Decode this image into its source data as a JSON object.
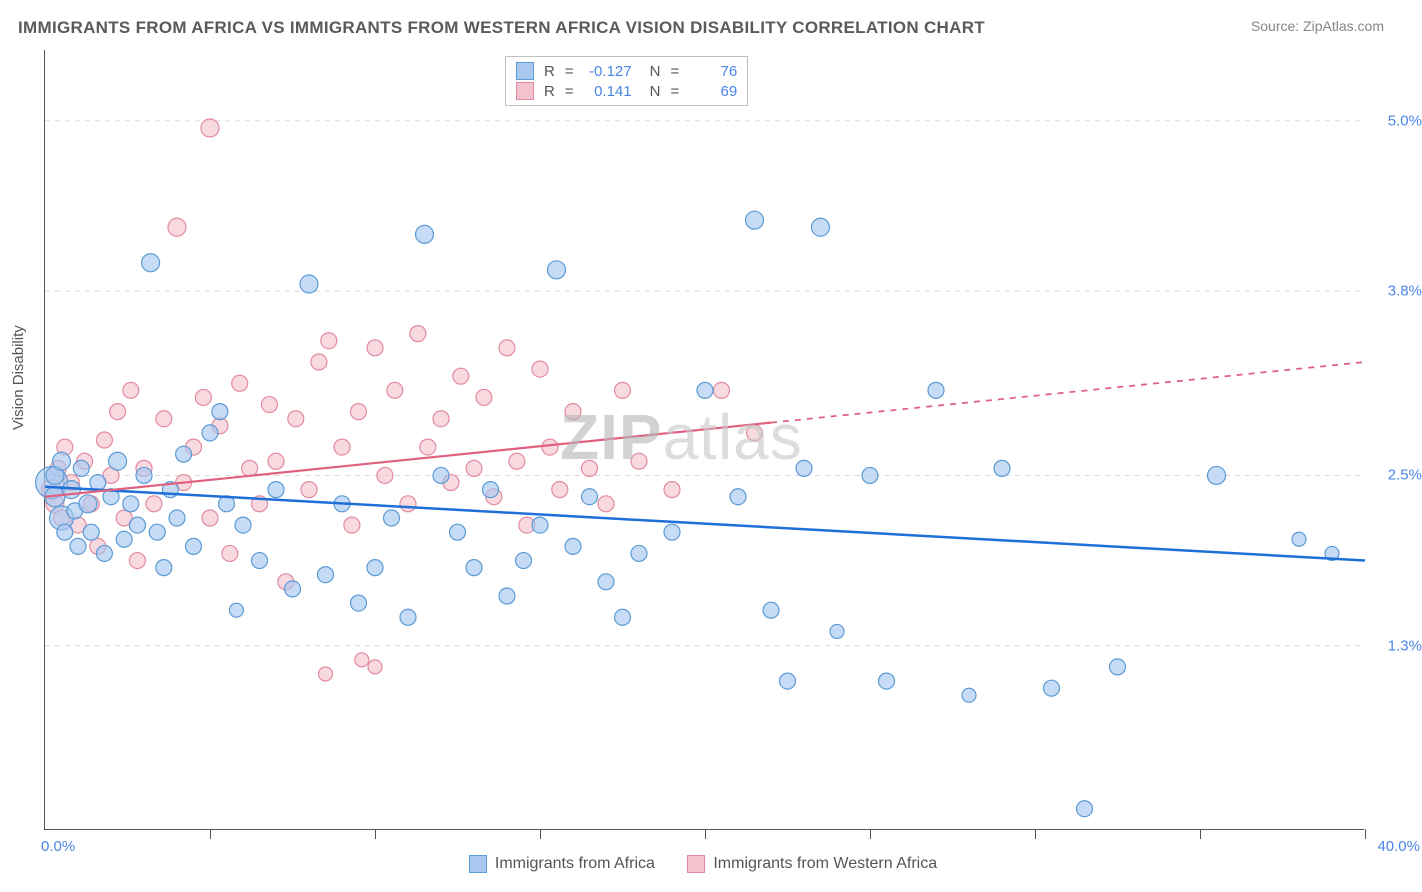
{
  "title": "IMMIGRANTS FROM AFRICA VS IMMIGRANTS FROM WESTERN AFRICA VISION DISABILITY CORRELATION CHART",
  "source": "Source: ZipAtlas.com",
  "watermark": "ZIPatlas",
  "ylabel": "Vision Disability",
  "chart": {
    "type": "scatter",
    "xlim": [
      0,
      40
    ],
    "ylim": [
      0,
      5.5
    ],
    "x_axis_label_min": "0.0%",
    "x_axis_label_max": "40.0%",
    "y_grid": [
      1.3,
      2.5,
      3.8,
      5.0
    ],
    "y_grid_labels": [
      "1.3%",
      "2.5%",
      "3.8%",
      "5.0%"
    ],
    "x_tick_positions": [
      5,
      10,
      15,
      20,
      25,
      30,
      35,
      40
    ],
    "grid_color": "#d7d7d7",
    "background_color": "#ffffff",
    "axis_color": "#555555",
    "tick_label_color": "#4a86e8",
    "series": [
      {
        "name": "Immigrants from Africa",
        "marker_color_fill": "#a8c8f0",
        "marker_color_stroke": "#5b9bd5",
        "marker_opacity": 0.65,
        "line_color": "#1f6fd8",
        "line_width": 2.5,
        "R": "-0.127",
        "N": "76",
        "trend": {
          "y_at_x0": 2.42,
          "y_at_x40": 1.9,
          "solid_until_x": 40
        },
        "points": [
          [
            0.2,
            2.45,
            16
          ],
          [
            0.3,
            2.35,
            10
          ],
          [
            0.3,
            2.5,
            9
          ],
          [
            0.5,
            2.2,
            12
          ],
          [
            0.5,
            2.6,
            9
          ],
          [
            0.6,
            2.1,
            8
          ],
          [
            0.8,
            2.4,
            9
          ],
          [
            0.9,
            2.25,
            8
          ],
          [
            1,
            2.0,
            8
          ],
          [
            1.1,
            2.55,
            8
          ],
          [
            1.3,
            2.3,
            9
          ],
          [
            1.4,
            2.1,
            8
          ],
          [
            1.6,
            2.45,
            8
          ],
          [
            1.8,
            1.95,
            8
          ],
          [
            2,
            2.35,
            8
          ],
          [
            2.2,
            2.6,
            9
          ],
          [
            2.4,
            2.05,
            8
          ],
          [
            2.6,
            2.3,
            8
          ],
          [
            2.8,
            2.15,
            8
          ],
          [
            3,
            2.5,
            8
          ],
          [
            3.2,
            4.0,
            9
          ],
          [
            3.4,
            2.1,
            8
          ],
          [
            3.6,
            1.85,
            8
          ],
          [
            3.8,
            2.4,
            8
          ],
          [
            4,
            2.2,
            8
          ],
          [
            4.2,
            2.65,
            8
          ],
          [
            4.5,
            2.0,
            8
          ],
          [
            5,
            2.8,
            8
          ],
          [
            5.3,
            2.95,
            8
          ],
          [
            5.5,
            2.3,
            8
          ],
          [
            5.8,
            1.55,
            7
          ],
          [
            6,
            2.15,
            8
          ],
          [
            6.5,
            1.9,
            8
          ],
          [
            7,
            2.4,
            8
          ],
          [
            7.5,
            1.7,
            8
          ],
          [
            8,
            3.85,
            9
          ],
          [
            8.5,
            1.8,
            8
          ],
          [
            9,
            2.3,
            8
          ],
          [
            9.5,
            1.6,
            8
          ],
          [
            10,
            1.85,
            8
          ],
          [
            10.5,
            2.2,
            8
          ],
          [
            11,
            1.5,
            8
          ],
          [
            11.5,
            4.2,
            9
          ],
          [
            12,
            2.5,
            8
          ],
          [
            12.5,
            2.1,
            8
          ],
          [
            13,
            1.85,
            8
          ],
          [
            13.5,
            2.4,
            8
          ],
          [
            14,
            1.65,
            8
          ],
          [
            14.5,
            1.9,
            8
          ],
          [
            15,
            2.15,
            8
          ],
          [
            15.5,
            3.95,
            9
          ],
          [
            16,
            2.0,
            8
          ],
          [
            16.5,
            2.35,
            8
          ],
          [
            17,
            1.75,
            8
          ],
          [
            17.5,
            1.5,
            8
          ],
          [
            18,
            1.95,
            8
          ],
          [
            19,
            2.1,
            8
          ],
          [
            20,
            3.1,
            8
          ],
          [
            21,
            2.35,
            8
          ],
          [
            21.5,
            4.3,
            9
          ],
          [
            22,
            1.55,
            8
          ],
          [
            22.5,
            1.05,
            8
          ],
          [
            23,
            2.55,
            8
          ],
          [
            23.5,
            4.25,
            9
          ],
          [
            24,
            1.4,
            7
          ],
          [
            25,
            2.5,
            8
          ],
          [
            25.5,
            1.05,
            8
          ],
          [
            27,
            3.1,
            8
          ],
          [
            28,
            0.95,
            7
          ],
          [
            29,
            2.55,
            8
          ],
          [
            30.5,
            1.0,
            8
          ],
          [
            32.5,
            1.15,
            8
          ],
          [
            31.5,
            0.15,
            8
          ],
          [
            35.5,
            2.5,
            9
          ],
          [
            38,
            2.05,
            7
          ],
          [
            39,
            1.95,
            7
          ]
        ]
      },
      {
        "name": "Immigrants from Western Africa",
        "marker_color_fill": "#f4c2cd",
        "marker_color_stroke": "#e38aa0",
        "marker_opacity": 0.62,
        "line_color": "#e0617f",
        "line_width": 2.2,
        "R": "0.141",
        "N": "69",
        "trend": {
          "y_at_x0": 2.35,
          "y_at_x40": 3.3,
          "solid_until_x": 22
        },
        "points": [
          [
            0.2,
            2.4,
            10
          ],
          [
            0.3,
            2.3,
            9
          ],
          [
            0.4,
            2.55,
            8
          ],
          [
            0.5,
            2.2,
            8
          ],
          [
            0.6,
            2.7,
            8
          ],
          [
            0.8,
            2.45,
            8
          ],
          [
            1,
            2.15,
            8
          ],
          [
            1.2,
            2.6,
            8
          ],
          [
            1.4,
            2.3,
            8
          ],
          [
            1.6,
            2.0,
            8
          ],
          [
            1.8,
            2.75,
            8
          ],
          [
            2,
            2.5,
            8
          ],
          [
            2.2,
            2.95,
            8
          ],
          [
            2.4,
            2.2,
            8
          ],
          [
            2.6,
            3.1,
            8
          ],
          [
            2.8,
            1.9,
            8
          ],
          [
            3,
            2.55,
            8
          ],
          [
            3.3,
            2.3,
            8
          ],
          [
            3.6,
            2.9,
            8
          ],
          [
            4,
            4.25,
            9
          ],
          [
            4.2,
            2.45,
            8
          ],
          [
            4.5,
            2.7,
            8
          ],
          [
            4.8,
            3.05,
            8
          ],
          [
            5,
            2.2,
            8
          ],
          [
            5.3,
            2.85,
            8
          ],
          [
            5.6,
            1.95,
            8
          ],
          [
            5.9,
            3.15,
            8
          ],
          [
            5,
            4.95,
            9
          ],
          [
            6.2,
            2.55,
            8
          ],
          [
            6.5,
            2.3,
            8
          ],
          [
            6.8,
            3.0,
            8
          ],
          [
            7,
            2.6,
            8
          ],
          [
            7.3,
            1.75,
            8
          ],
          [
            7.6,
            2.9,
            8
          ],
          [
            8,
            2.4,
            8
          ],
          [
            8.3,
            3.3,
            8
          ],
          [
            8.6,
            3.45,
            8
          ],
          [
            8.5,
            1.1,
            7
          ],
          [
            9,
            2.7,
            8
          ],
          [
            9.3,
            2.15,
            8
          ],
          [
            9.6,
            1.2,
            7
          ],
          [
            9.5,
            2.95,
            8
          ],
          [
            10,
            3.4,
            8
          ],
          [
            10,
            1.15,
            7
          ],
          [
            10.3,
            2.5,
            8
          ],
          [
            10.6,
            3.1,
            8
          ],
          [
            11,
            2.3,
            8
          ],
          [
            11.3,
            3.5,
            8
          ],
          [
            11.6,
            2.7,
            8
          ],
          [
            12,
            2.9,
            8
          ],
          [
            12.3,
            2.45,
            8
          ],
          [
            12.6,
            3.2,
            8
          ],
          [
            13,
            2.55,
            8
          ],
          [
            13.3,
            3.05,
            8
          ],
          [
            13.6,
            2.35,
            8
          ],
          [
            14,
            3.4,
            8
          ],
          [
            14.3,
            2.6,
            8
          ],
          [
            14.6,
            2.15,
            8
          ],
          [
            15,
            3.25,
            8
          ],
          [
            15.3,
            2.7,
            8
          ],
          [
            15.6,
            2.4,
            8
          ],
          [
            16,
            2.95,
            8
          ],
          [
            16.5,
            2.55,
            8
          ],
          [
            17,
            2.3,
            8
          ],
          [
            17.5,
            3.1,
            8
          ],
          [
            18,
            2.6,
            8
          ],
          [
            19,
            2.4,
            8
          ],
          [
            20.5,
            3.1,
            8
          ],
          [
            21.5,
            2.8,
            8
          ]
        ]
      }
    ]
  },
  "legend": {
    "top": {
      "R_label": "R",
      "N_label": "N",
      "eq": "="
    },
    "bottom": {
      "items": [
        "Immigrants from Africa",
        "Immigrants from Western Africa"
      ]
    }
  }
}
